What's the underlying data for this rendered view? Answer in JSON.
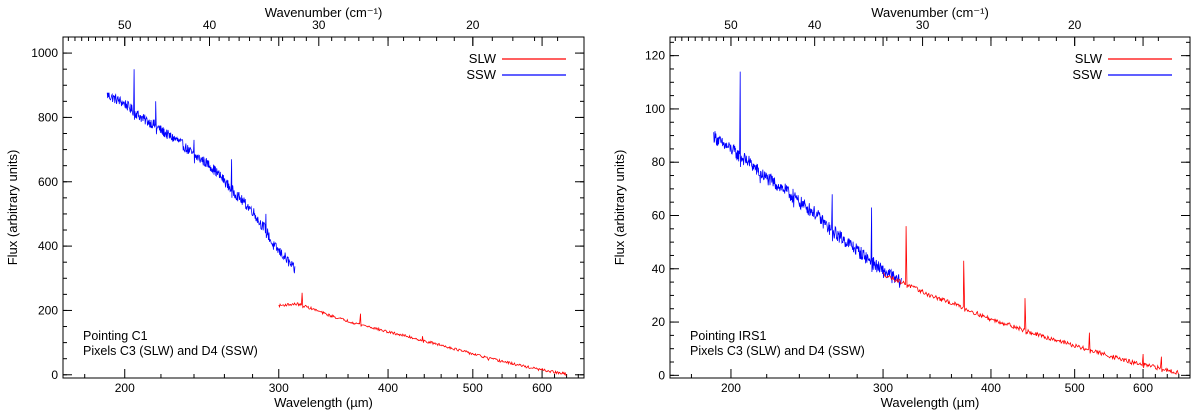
{
  "chart_data": [
    {
      "type": "line",
      "panel": "left",
      "xlabel": "Wavelength (µm)",
      "x2label": "Wavenumber (cm⁻¹)",
      "ylabel": "Flux (arbitrary units)",
      "xscale": "log",
      "xlim": [
        170,
        670
      ],
      "ylim": [
        -10,
        1050
      ],
      "xticks": [
        200,
        300,
        400,
        500,
        600
      ],
      "yticks": [
        0,
        200,
        400,
        600,
        800,
        1000
      ],
      "x2ticks": [
        50,
        40,
        30,
        20
      ],
      "legend": {
        "entries": [
          "SLW",
          "SSW"
        ],
        "placement": "top-right"
      },
      "annotations": [
        "Pointing C1",
        "Pixels C3 (SLW) and D4 (SSW)"
      ],
      "series": [
        {
          "name": "SSW",
          "color": "#0000ff",
          "x": [
            191,
            195,
            200,
            205,
            210,
            216,
            220,
            225,
            230,
            236,
            240,
            245,
            250,
            255,
            260,
            265,
            270,
            275,
            280,
            285,
            290,
            295,
            300,
            305,
            310,
            313
          ],
          "y": [
            870,
            858,
            843,
            818,
            795,
            778,
            760,
            742,
            728,
            700,
            682,
            668,
            652,
            628,
            603,
            575,
            552,
            530,
            510,
            475,
            452,
            405,
            385,
            365,
            340,
            325
          ],
          "noise": 16,
          "spikes": [
            [
              205,
              950
            ],
            [
              217,
              850
            ],
            [
              240,
              730
            ],
            [
              265,
              670
            ],
            [
              290,
              500
            ]
          ]
        },
        {
          "name": "SLW",
          "color": "#ff0000",
          "x": [
            300,
            307,
            315,
            320,
            330,
            340,
            350,
            365,
            380,
            400,
            420,
            440,
            460,
            480,
            500,
            520,
            540,
            560,
            580,
            600,
            620,
            640
          ],
          "y": [
            215,
            218,
            220,
            215,
            202,
            188,
            177,
            162,
            150,
            133,
            120,
            105,
            92,
            78,
            65,
            52,
            42,
            32,
            23,
            15,
            8,
            2
          ],
          "noise": 4,
          "spikes": [
            [
              319,
              255
            ],
            [
              372,
              190
            ],
            [
              438,
              120
            ],
            [
              520,
              50
            ]
          ]
        }
      ]
    },
    {
      "type": "line",
      "panel": "right",
      "xlabel": "Wavelength (µm)",
      "x2label": "Wavenumber (cm⁻¹)",
      "ylabel": "Flux (arbitrary units)",
      "xscale": "log",
      "xlim": [
        170,
        680
      ],
      "ylim": [
        -1,
        127
      ],
      "xticks": [
        200,
        300,
        400,
        500,
        600
      ],
      "yticks": [
        0,
        20,
        40,
        60,
        80,
        100,
        120
      ],
      "x2ticks": [
        50,
        40,
        30,
        20
      ],
      "legend": {
        "entries": [
          "SLW",
          "SSW"
        ],
        "placement": "top-right"
      },
      "annotations": [
        "Pointing IRS1",
        "Pixels C3 (SLW) and D4 (SSW)"
      ],
      "series": [
        {
          "name": "SSW",
          "color": "#0000ff",
          "x": [
            191,
            195,
            200,
            205,
            210,
            216,
            220,
            225,
            230,
            236,
            240,
            245,
            250,
            255,
            260,
            265,
            270,
            275,
            280,
            285,
            290,
            295,
            300,
            305,
            310,
            315
          ],
          "y": [
            90,
            87,
            85,
            82,
            80,
            76,
            74,
            72,
            70,
            67,
            65,
            63,
            61,
            58,
            55,
            53,
            51,
            49,
            47,
            45,
            43,
            41,
            39,
            38,
            36,
            35
          ],
          "noise": 2.5,
          "spikes": [
            [
              205,
              114
            ],
            [
              216,
              75
            ],
            [
              236,
              70
            ],
            [
              262,
              68
            ],
            [
              291,
              63
            ]
          ]
        },
        {
          "name": "SLW",
          "color": "#ff0000",
          "x": [
            300,
            310,
            320,
            330,
            340,
            350,
            365,
            380,
            400,
            420,
            440,
            460,
            480,
            500,
            520,
            540,
            560,
            580,
            600,
            620,
            640,
            660
          ],
          "y": [
            38,
            36,
            34,
            32,
            30,
            28.5,
            26.5,
            24,
            21,
            19,
            16.5,
            14.5,
            13,
            11,
            9.5,
            8,
            6.5,
            5,
            4,
            3,
            2,
            1
          ],
          "noise": 0.8,
          "spikes": [
            [
              319,
              56
            ],
            [
              372,
              43
            ],
            [
              438,
              29
            ],
            [
              520,
              16
            ],
            [
              600,
              8
            ],
            [
              630,
              7
            ]
          ]
        }
      ]
    }
  ]
}
